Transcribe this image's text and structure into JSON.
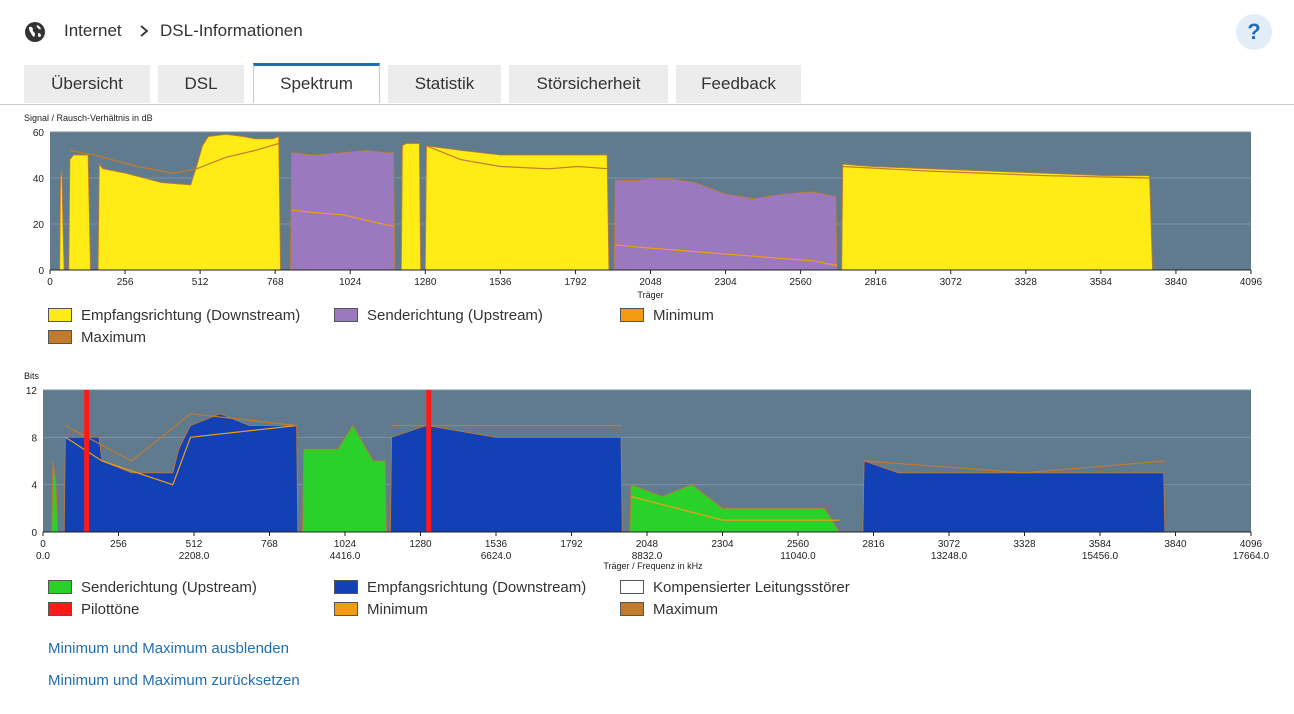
{
  "breadcrumb": {
    "items": [
      "Internet",
      "DSL-Informationen"
    ]
  },
  "help_label": "?",
  "tabs": [
    {
      "label": "Übersicht",
      "active": false
    },
    {
      "label": "DSL",
      "active": false
    },
    {
      "label": "Spektrum",
      "active": true
    },
    {
      "label": "Statistik",
      "active": false
    },
    {
      "label": "Störsicherheit",
      "active": false
    },
    {
      "label": "Feedback",
      "active": false
    }
  ],
  "colors": {
    "plot_bg": "#607a8e",
    "downstream_snr": "#ffec17",
    "upstream_snr": "#9b79bf",
    "minimum": "#f39c12",
    "maximum": "#c47a2c",
    "bits_up": "#2bd12b",
    "bits_down": "#1240b5",
    "pilot": "#ff1a1a",
    "link": "#1f6fb5"
  },
  "chart_data": [
    {
      "type": "area",
      "ylabel": "Signal / Rausch-Verhältnis in dB",
      "xlabel": "Träger",
      "xlim": [
        0,
        4096
      ],
      "ylim": [
        0,
        60
      ],
      "x_ticks": [
        "0",
        "256",
        "512",
        "768",
        "1024",
        "1280",
        "1536",
        "1792",
        "2048",
        "2304",
        "2560",
        "2816",
        "3072",
        "3328",
        "3584",
        "3840",
        "4096"
      ],
      "y_ticks": [
        "0",
        "20",
        "40",
        "60"
      ],
      "series": [
        {
          "name": "Empfangsrichtung (Downstream)",
          "color": "#ffec17",
          "segments": [
            [
              [
                33,
                0
              ],
              [
                36,
                40
              ],
              [
                40,
                44
              ],
              [
                44,
                20
              ],
              [
                48,
                0
              ]
            ],
            [
              [
                64,
                0
              ],
              [
                68,
                48
              ],
              [
                80,
                50
              ],
              [
                130,
                50
              ],
              [
                138,
                0
              ]
            ],
            [
              [
                164,
                0
              ],
              [
                168,
                46
              ],
              [
                180,
                44
              ],
              [
                260,
                42
              ],
              [
                320,
                40
              ],
              [
                380,
                38
              ],
              [
                480,
                37
              ],
              [
                500,
                45
              ],
              [
                520,
                54
              ],
              [
                540,
                58
              ],
              [
                600,
                59
              ],
              [
                660,
                58
              ],
              [
                700,
                57
              ],
              [
                760,
                57
              ],
              [
                780,
                58
              ],
              [
                786,
                0
              ]
            ],
            [
              [
                1198,
                0
              ],
              [
                1202,
                54
              ],
              [
                1214,
                55
              ],
              [
                1260,
                55
              ],
              [
                1264,
                0
              ]
            ],
            [
              [
                1280,
                0
              ],
              [
                1284,
                54
              ],
              [
                1400,
                52
              ],
              [
                1536,
                50
              ],
              [
                1700,
                50
              ],
              [
                1800,
                50
              ],
              [
                1900,
                50
              ],
              [
                1906,
                0
              ]
            ],
            [
              [
                2700,
                0
              ],
              [
                2704,
                46
              ],
              [
                2800,
                45
              ],
              [
                3000,
                44
              ],
              [
                3200,
                43
              ],
              [
                3400,
                42
              ],
              [
                3600,
                41
              ],
              [
                3750,
                41
              ],
              [
                3760,
                0
              ]
            ]
          ]
        },
        {
          "name": "Senderichtung (Upstream)",
          "color": "#9b79bf",
          "segments": [
            [
              [
                820,
                0
              ],
              [
                824,
                51
              ],
              [
                900,
                50
              ],
              [
                1000,
                51
              ],
              [
                1080,
                52
              ],
              [
                1150,
                51
              ],
              [
                1172,
                51
              ],
              [
                1176,
                0
              ]
            ],
            [
              [
                1924,
                0
              ],
              [
                1928,
                39
              ],
              [
                2000,
                39
              ],
              [
                2100,
                40
              ],
              [
                2200,
                38
              ],
              [
                2304,
                33
              ],
              [
                2400,
                31
              ],
              [
                2500,
                33
              ],
              [
                2600,
                34
              ],
              [
                2680,
                32
              ],
              [
                2684,
                0
              ]
            ]
          ]
        },
        {
          "name": "Minimum",
          "color": "#f39c12",
          "lines": [
            [
              [
                824,
                26
              ],
              [
                900,
                25
              ],
              [
                1000,
                24
              ],
              [
                1100,
                21
              ],
              [
                1172,
                19
              ]
            ],
            [
              [
                1928,
                11
              ],
              [
                2000,
                10
              ],
              [
                2200,
                8
              ],
              [
                2400,
                6
              ],
              [
                2600,
                4
              ],
              [
                2684,
                2
              ]
            ]
          ]
        },
        {
          "name": "Maximum",
          "color": "#c47a2c",
          "lines": [
            [
              [
                68,
                52
              ],
              [
                150,
                50
              ],
              [
                300,
                45
              ],
              [
                420,
                42
              ],
              [
                500,
                44
              ],
              [
                600,
                49
              ],
              [
                700,
                52
              ],
              [
                780,
                55
              ]
            ],
            [
              [
                1284,
                54
              ],
              [
                1400,
                48
              ],
              [
                1536,
                45
              ],
              [
                1700,
                44
              ],
              [
                1800,
                45
              ],
              [
                1906,
                44
              ]
            ],
            [
              [
                2704,
                45
              ],
              [
                3000,
                43
              ],
              [
                3400,
                41
              ],
              [
                3750,
                40
              ]
            ]
          ]
        }
      ]
    },
    {
      "type": "area",
      "ylabel": "Bits",
      "xlabel": "Träger / Frequenz in kHz",
      "xlim": [
        0,
        4096
      ],
      "ylim": [
        0,
        12
      ],
      "x_ticks": [
        "0",
        "256",
        "512",
        "768",
        "1024",
        "1280",
        "1536",
        "1792",
        "2048",
        "2304",
        "2560",
        "2816",
        "3072",
        "3328",
        "3584",
        "3840",
        "4096"
      ],
      "x_ticks_khz": [
        "0.0",
        "2208.0",
        "4416.0",
        "6624.0",
        "8832.0",
        "11040.0",
        "13248.0",
        "15456.0",
        "17664.0"
      ],
      "y_ticks": [
        "0",
        "4",
        "8",
        "12"
      ],
      "series": [
        {
          "name": "Senderichtung (Upstream)",
          "color": "#2bd12b",
          "segments": [
            [
              [
                30,
                0
              ],
              [
                34,
                6
              ],
              [
                44,
                4
              ],
              [
                50,
                0
              ]
            ],
            [
              [
                880,
                0
              ],
              [
                884,
                7
              ],
              [
                1000,
                7
              ],
              [
                1050,
                9
              ],
              [
                1120,
                6
              ],
              [
                1160,
                6
              ],
              [
                1164,
                0
              ]
            ],
            [
              [
                1990,
                0
              ],
              [
                1994,
                4
              ],
              [
                2100,
                3
              ],
              [
                2200,
                4
              ],
              [
                2304,
                2
              ],
              [
                2450,
                2
              ],
              [
                2560,
                2
              ],
              [
                2650,
                2
              ],
              [
                2700,
                0
              ]
            ]
          ]
        },
        {
          "name": "Empfangsrichtung (Downstream)",
          "color": "#1240b5",
          "segments": [
            [
              [
                72,
                0
              ],
              [
                76,
                8
              ],
              [
                190,
                8
              ],
              [
                200,
                6
              ],
              [
                300,
                5
              ],
              [
                440,
                5
              ],
              [
                460,
                7
              ],
              [
                500,
                9
              ],
              [
                600,
                10
              ],
              [
                700,
                9
              ],
              [
                860,
                9
              ],
              [
                864,
                0
              ]
            ],
            [
              [
                1178,
                0
              ],
              [
                1182,
                8
              ],
              [
                1300,
                9
              ],
              [
                1536,
                8
              ],
              [
                1700,
                8
              ],
              [
                1800,
                8
              ],
              [
                1960,
                8
              ],
              [
                1964,
                0
              ]
            ],
            [
              [
                2780,
                0
              ],
              [
                2784,
                6
              ],
              [
                2900,
                5
              ],
              [
                3100,
                5
              ],
              [
                3328,
                5
              ],
              [
                3600,
                5
              ],
              [
                3800,
                5
              ],
              [
                3804,
                0
              ]
            ]
          ]
        },
        {
          "name": "Kompensierter Leitungsstörer",
          "color": "#ffffff",
          "segments": []
        },
        {
          "name": "Pilottöne",
          "color": "#ff1a1a",
          "markers": [
            148,
            1308
          ]
        },
        {
          "name": "Minimum",
          "color": "#f39c12",
          "lines": [
            [
              [
                76,
                8
              ],
              [
                200,
                6
              ],
              [
                440,
                4
              ],
              [
                500,
                8
              ],
              [
                860,
                9
              ]
            ],
            [
              [
                1994,
                3
              ],
              [
                2304,
                1
              ],
              [
                2700,
                1
              ]
            ]
          ]
        },
        {
          "name": "Maximum",
          "color": "#c47a2c",
          "lines": [
            [
              [
                76,
                9
              ],
              [
                300,
                6
              ],
              [
                500,
                10
              ],
              [
                860,
                9
              ]
            ],
            [
              [
                1182,
                9
              ],
              [
                1536,
                9
              ],
              [
                1964,
                9
              ]
            ],
            [
              [
                2784,
                6
              ],
              [
                3328,
                5
              ],
              [
                3804,
                6
              ]
            ]
          ]
        }
      ]
    }
  ],
  "legend_top": [
    {
      "label": "Empfangsrichtung (Downstream)",
      "color": "#ffec17"
    },
    {
      "label": "Senderichtung (Upstream)",
      "color": "#9b79bf"
    },
    {
      "label": "Minimum",
      "color": "#f39c12"
    },
    {
      "label": "Maximum",
      "color": "#c47a2c"
    }
  ],
  "legend_bottom": [
    {
      "label": "Senderichtung (Upstream)",
      "color": "#2bd12b"
    },
    {
      "label": "Empfangsrichtung (Downstream)",
      "color": "#1240b5"
    },
    {
      "label": "Kompensierter Leitungsstörer",
      "color": "#ffffff"
    },
    {
      "label": "Pilottöne",
      "color": "#ff1a1a"
    },
    {
      "label": "Minimum",
      "color": "#f39c12"
    },
    {
      "label": "Maximum",
      "color": "#c47a2c"
    }
  ],
  "links": {
    "hide_minmax": "Minimum und Maximum ausblenden",
    "reset_minmax": "Minimum und Maximum zurücksetzen"
  }
}
